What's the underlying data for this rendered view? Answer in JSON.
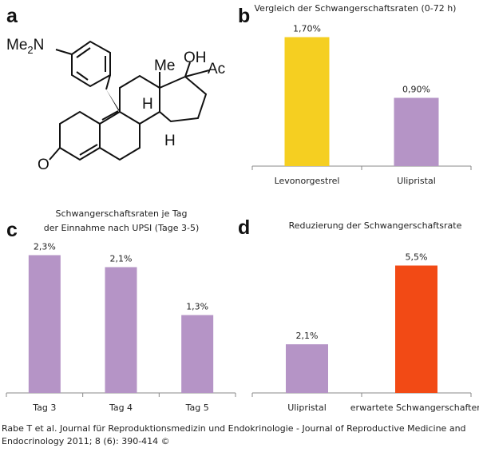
{
  "panels": [
    "a",
    "b",
    "c",
    "d"
  ],
  "molecule": {
    "amine": [
      "Me",
      "2",
      "N"
    ],
    "hydroxyl": "OH",
    "methyl": "Me",
    "acetyl": "Ac",
    "hydrogen_top": "H",
    "hydrogen_bottom": "H",
    "oxygen": "O"
  },
  "chart_data": [
    {
      "type": "bar",
      "title": [
        "Vergleich der Schwangerschaftsraten (0-72 h)"
      ],
      "categories": [
        "Levonorgestrel",
        "Ulipristal"
      ],
      "values": [
        1.7,
        0.9
      ],
      "value_labels": [
        "1,70%",
        "0,90%"
      ],
      "colors": [
        "#f5cf21",
        "#b594c6"
      ]
    },
    {
      "type": "bar",
      "title": [
        "Schwangerschaftsraten je Tag",
        "der Einnahme nach UPSI (Tage 3-5)"
      ],
      "categories": [
        "Tag 3",
        "Tag 4",
        "Tag 5"
      ],
      "values": [
        2.3,
        2.1,
        1.3
      ],
      "value_labels": [
        "2,3%",
        "2,1%",
        "1,3%"
      ],
      "colors": [
        "#b594c6",
        "#b594c6",
        "#b594c6"
      ]
    },
    {
      "type": "bar",
      "title": [
        "Reduzierung der Schwangerschaftsrate"
      ],
      "categories": [
        "Ulipristal",
        "erwartete Schwangerschaften"
      ],
      "values": [
        2.1,
        5.5
      ],
      "value_labels": [
        "2,1%",
        "5,5%"
      ],
      "colors": [
        "#b594c6",
        "#f24a15"
      ]
    }
  ],
  "caption": [
    "Rabe T et al. Journal für Reproduktionsmedizin und Endokrinologie - Journal of Reproductive Medicine and",
    "Endocrinology 2011; 8 (6): 390-414 ©"
  ]
}
